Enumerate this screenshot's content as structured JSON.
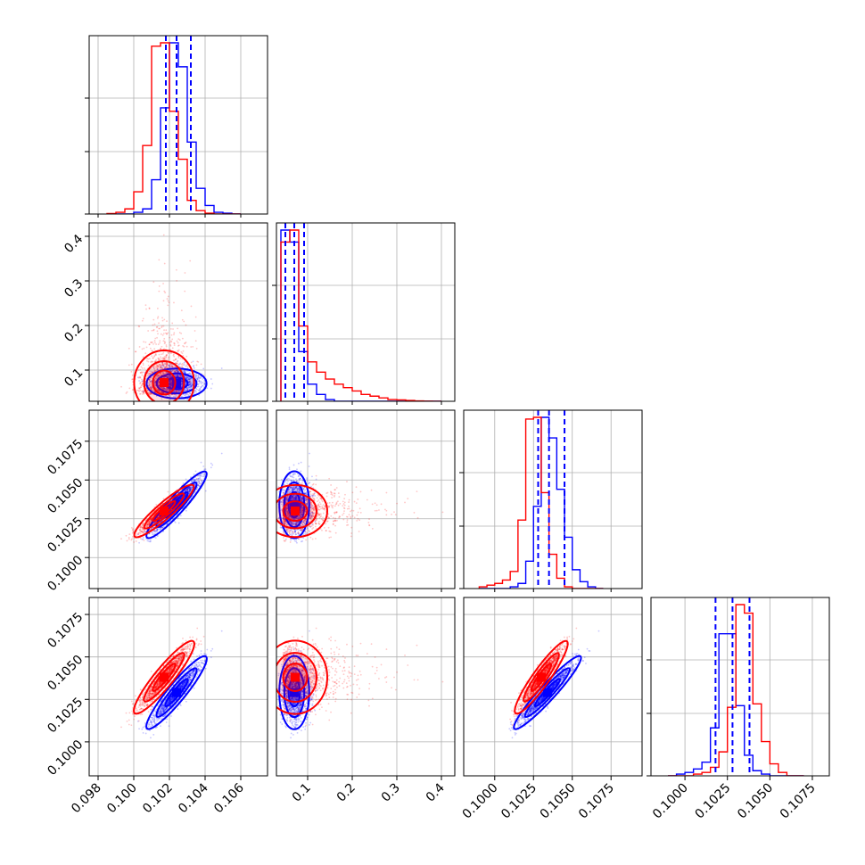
{
  "colors": {
    "series_a": "#0000ff",
    "series_b": "#ff0000",
    "grid": "#b0b0b0",
    "frame": "#000000"
  },
  "chart_data": {
    "type": "corner",
    "parameters": 4,
    "grid": true,
    "quantile_lines": {
      "p0": [
        0.1018,
        0.1024,
        0.1032
      ],
      "p1": [
        0.05,
        0.07,
        0.092
      ],
      "p2": [
        0.1028,
        0.1035,
        0.1045
      ],
      "p3": [
        0.1018,
        0.1028,
        0.1038
      ]
    },
    "ranges": {
      "p0": [
        0.0975,
        0.1075
      ],
      "p1": [
        0.03,
        0.43
      ],
      "p2": [
        0.098,
        0.1095
      ],
      "p3": [
        0.098,
        0.1085
      ]
    },
    "ticks": {
      "p0": [
        "0.098",
        "0.100",
        "0.102",
        "0.104",
        "0.106"
      ],
      "p1": [
        "0.1",
        "0.2",
        "0.3",
        "0.4"
      ],
      "p2": [
        "0.1000",
        "0.1025",
        "0.1050",
        "0.1075"
      ],
      "p3": [
        "0.1000",
        "0.1025",
        "0.1050",
        "0.1075"
      ]
    },
    "tick_values": {
      "p0": [
        0.098,
        0.1,
        0.102,
        0.104,
        0.106
      ],
      "p1": [
        0.1,
        0.2,
        0.3,
        0.4
      ],
      "p2": [
        0.1,
        0.1025,
        0.105,
        0.1075
      ],
      "p3": [
        0.1,
        0.1025,
        0.105,
        0.1075
      ]
    },
    "histograms": {
      "p0": {
        "edges": [
          0.0985,
          0.099,
          0.0995,
          0.1,
          0.1005,
          0.101,
          0.1015,
          0.102,
          0.1025,
          0.103,
          0.1035,
          0.104,
          0.1045,
          0.105,
          0.1055,
          0.106
        ],
        "series_a": [
          0.0,
          0.0,
          0.0,
          0.01,
          0.03,
          0.2,
          0.62,
          1.0,
          0.86,
          0.42,
          0.15,
          0.05,
          0.01,
          0.005,
          0.0
        ],
        "series_b": [
          0.003,
          0.01,
          0.03,
          0.13,
          0.4,
          0.98,
          1.0,
          0.6,
          0.32,
          0.08,
          0.02,
          0.005,
          0.0,
          0.0,
          0.0
        ]
      },
      "p1": {
        "edges": [
          0.04,
          0.06,
          0.08,
          0.1,
          0.12,
          0.14,
          0.16,
          0.18,
          0.2,
          0.22,
          0.24,
          0.26,
          0.28,
          0.3,
          0.32,
          0.34,
          0.36,
          0.38,
          0.4
        ],
        "series_a": [
          1.0,
          0.93,
          0.29,
          0.1,
          0.04,
          0.01,
          0.0,
          0.0,
          0.0,
          0.0,
          0.0,
          0.0,
          0.0,
          0.0,
          0.0,
          0.0,
          0.0,
          0.0
        ],
        "series_b": [
          0.93,
          1.0,
          0.44,
          0.23,
          0.17,
          0.13,
          0.1,
          0.08,
          0.06,
          0.04,
          0.03,
          0.02,
          0.01,
          0.008,
          0.005,
          0.002,
          0.001,
          0.0
        ]
      },
      "p2": {
        "edges": [
          0.099,
          0.0995,
          0.1,
          0.1005,
          0.101,
          0.1015,
          0.102,
          0.1025,
          0.103,
          0.1035,
          0.104,
          0.1045,
          0.105,
          0.1055,
          0.106,
          0.1065,
          0.107
        ],
        "series_a": [
          0.0,
          0.0,
          0.0,
          0.0,
          0.01,
          0.03,
          0.16,
          0.48,
          1.0,
          0.88,
          0.58,
          0.3,
          0.11,
          0.04,
          0.01,
          0.0
        ],
        "series_b": [
          0.01,
          0.02,
          0.03,
          0.05,
          0.1,
          0.4,
          0.99,
          1.0,
          0.56,
          0.2,
          0.06,
          0.01,
          0.0,
          0.0,
          0.0,
          0.0
        ]
      },
      "p3": {
        "edges": [
          0.099,
          0.0995,
          0.1,
          0.1005,
          0.101,
          0.1015,
          0.102,
          0.1025,
          0.103,
          0.1035,
          0.104,
          0.1045,
          0.105,
          0.1055,
          0.106,
          0.1065,
          0.107
        ],
        "series_a": [
          0.0,
          0.01,
          0.02,
          0.04,
          0.08,
          0.28,
          0.83,
          0.83,
          0.41,
          0.12,
          0.03,
          0.01,
          0.0,
          0.0,
          0.0,
          0.0
        ],
        "series_b": [
          0.0,
          0.0,
          0.0,
          0.01,
          0.02,
          0.05,
          0.14,
          0.4,
          1.0,
          0.95,
          0.42,
          0.2,
          0.07,
          0.02,
          0.0,
          0.0
        ]
      }
    },
    "posteriors": {
      "series_a": {
        "mean": [
          0.1024,
          0.075,
          0.1034,
          0.1029
        ],
        "sd": [
          0.0007,
          0.016,
          0.0009,
          0.0009
        ],
        "corr": [
          [
            1,
            -0.1,
            0.93,
            0.93
          ],
          [
            -0.1,
            1,
            -0.05,
            -0.05
          ],
          [
            0.93,
            -0.05,
            1,
            0.95
          ],
          [
            0.93,
            -0.05,
            0.95,
            1
          ]
        ]
      },
      "series_b": {
        "mean": [
          0.1017,
          0.095,
          0.103,
          0.1038
        ],
        "sd": [
          0.0007,
          0.06,
          0.0007,
          0.0009
        ],
        "corr": [
          [
            1,
            -0.05,
            0.92,
            0.92
          ],
          [
            -0.05,
            1,
            -0.05,
            -0.05
          ],
          [
            0.92,
            -0.05,
            1,
            0.93
          ],
          [
            0.92,
            -0.05,
            0.93,
            1
          ]
        ],
        "p1_skew": true
      }
    }
  }
}
